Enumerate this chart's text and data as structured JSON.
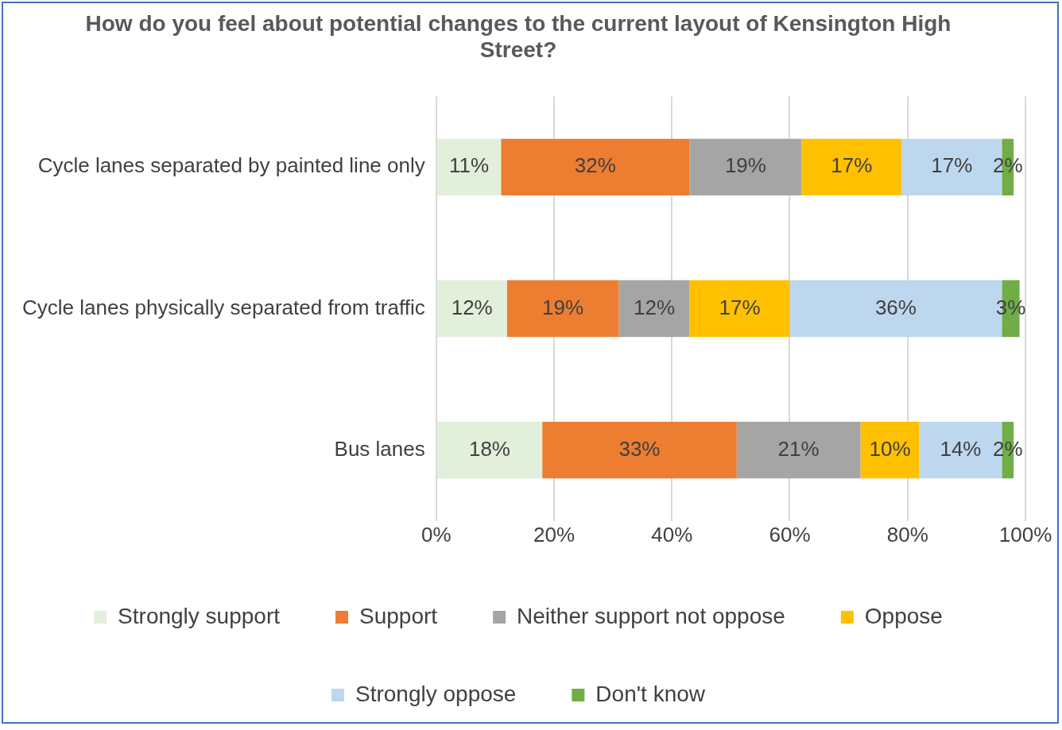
{
  "chart_data": {
    "type": "bar",
    "orientation": "horizontal",
    "stacked": true,
    "title": "How do you feel about potential changes to the current layout of Kensington High Street?",
    "categories": [
      "Cycle lanes separated by painted line only",
      "Cycle lanes physically separated from traffic",
      "Bus lanes"
    ],
    "series": [
      {
        "name": "Strongly support",
        "color": "#e2efda",
        "values": [
          11,
          12,
          18
        ],
        "value_labels": [
          "11%",
          "12%",
          "18%"
        ]
      },
      {
        "name": "Support",
        "color": "#ed7d31",
        "values": [
          32,
          19,
          33
        ],
        "value_labels": [
          "32%",
          "19%",
          "33%"
        ]
      },
      {
        "name": "Neither support not oppose",
        "color": "#a5a5a5",
        "values": [
          19,
          12,
          21
        ],
        "value_labels": [
          "19%",
          "12%",
          "21%"
        ]
      },
      {
        "name": "Oppose",
        "color": "#ffc000",
        "values": [
          17,
          17,
          10
        ],
        "value_labels": [
          "17%",
          "17%",
          "10%"
        ]
      },
      {
        "name": "Strongly oppose",
        "color": "#bdd7ee",
        "values": [
          17,
          36,
          14
        ],
        "value_labels": [
          "17%",
          "36%",
          "14%"
        ]
      },
      {
        "name": "Don't know",
        "color": "#70ad47",
        "values": [
          2,
          3,
          2
        ],
        "value_labels": [
          "2%",
          "3%",
          "2%"
        ]
      }
    ],
    "xlim": [
      0,
      100
    ],
    "xticks": [
      {
        "value": 0,
        "label": "0%"
      },
      {
        "value": 20,
        "label": "20%"
      },
      {
        "value": 40,
        "label": "40%"
      },
      {
        "value": 60,
        "label": "60%"
      },
      {
        "value": 80,
        "label": "80%"
      },
      {
        "value": 100,
        "label": "100%"
      }
    ],
    "grid": "x",
    "legend": "bottom"
  }
}
